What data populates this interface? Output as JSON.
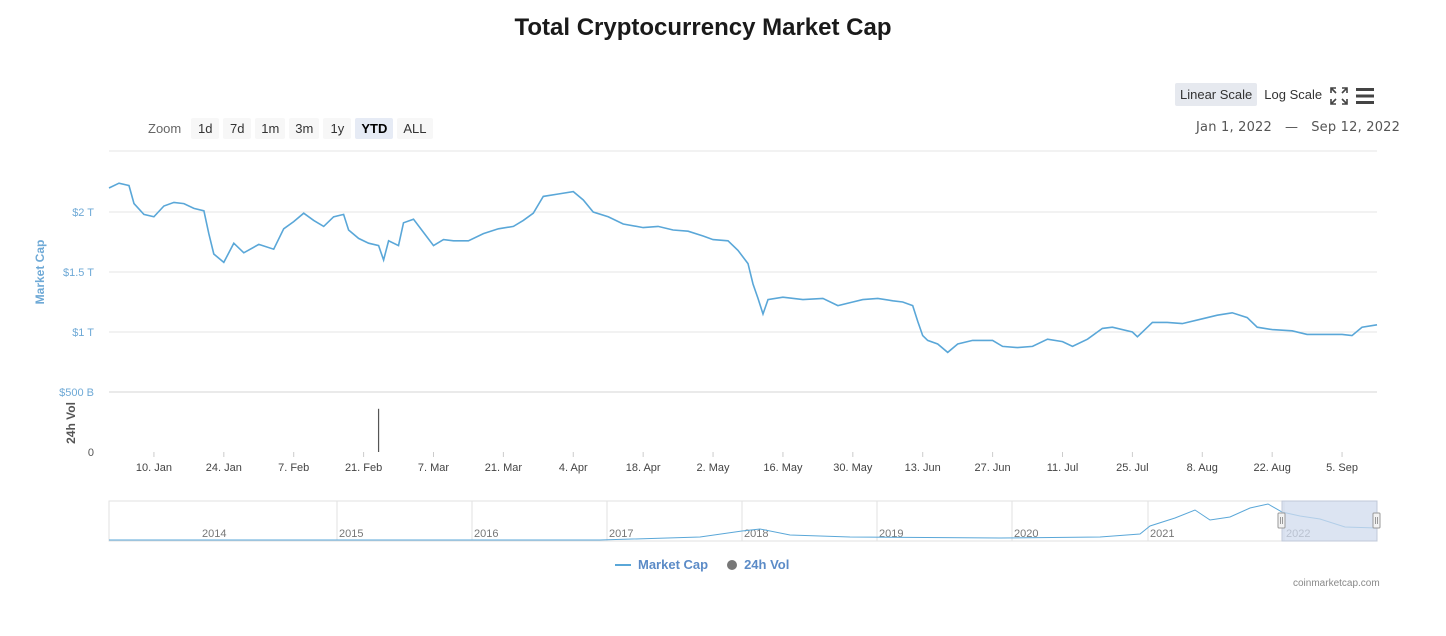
{
  "title": "Total Cryptocurrency Market Cap",
  "scale_buttons": {
    "linear": "Linear Scale",
    "log": "Log Scale"
  },
  "zoom": {
    "label": "Zoom",
    "buttons": [
      "1d",
      "7d",
      "1m",
      "3m",
      "1y",
      "YTD",
      "ALL"
    ],
    "selected": "YTD"
  },
  "date_range": {
    "from": "Jan 1, 2022",
    "separator": "—",
    "to": "Sep 12, 2022"
  },
  "legend": {
    "market_cap": "Market Cap",
    "vol": "24h Vol"
  },
  "credits": "coinmarketcap.com",
  "colors": {
    "line": "#5aa7d8",
    "vol_bar": "#555555",
    "nav_fill": "#d0dbee",
    "grid": "#e6e6e6",
    "axis_text": "#6ea9d6"
  },
  "icons": {
    "fullscreen": "expand-icon",
    "menu": "hamburger-menu-icon"
  },
  "chart_data": {
    "type": "line",
    "ylabel": "Market Cap",
    "vol_label": "24h Vol",
    "y_unit": "USD",
    "ylim": [
      0,
      2500000000000
    ],
    "y_ticks": [
      {
        "value": 0,
        "label": "0"
      },
      {
        "value": 500000000000,
        "label": "$500 B"
      },
      {
        "value": 1000000000000,
        "label": "$1 T"
      },
      {
        "value": 1500000000000,
        "label": "$1.5 T"
      },
      {
        "value": 2000000000000,
        "label": "$2 T"
      }
    ],
    "x_ticks": [
      "10. Jan",
      "24. Jan",
      "7. Feb",
      "21. Feb",
      "7. Mar",
      "21. Mar",
      "4. Apr",
      "18. Apr",
      "2. May",
      "16. May",
      "30. May",
      "13. Jun",
      "27. Jun",
      "11. Jul",
      "25. Jul",
      "8. Aug",
      "22. Aug",
      "5. Sep"
    ],
    "x_tick_dates": [
      "2022-01-10",
      "2022-01-24",
      "2022-02-07",
      "2022-02-21",
      "2022-03-07",
      "2022-03-21",
      "2022-04-04",
      "2022-04-18",
      "2022-05-02",
      "2022-05-16",
      "2022-05-30",
      "2022-06-13",
      "2022-06-27",
      "2022-07-11",
      "2022-07-25",
      "2022-08-08",
      "2022-08-22",
      "2022-09-05"
    ],
    "xlim": [
      "2022-01-01",
      "2022-09-12"
    ],
    "grid": true,
    "series": [
      {
        "name": "Market Cap",
        "points": [
          [
            "2022-01-01",
            2200000000000.0
          ],
          [
            "2022-01-03",
            2240000000000.0
          ],
          [
            "2022-01-05",
            2220000000000.0
          ],
          [
            "2022-01-06",
            2070000000000.0
          ],
          [
            "2022-01-08",
            1980000000000.0
          ],
          [
            "2022-01-10",
            1960000000000.0
          ],
          [
            "2022-01-12",
            2050000000000.0
          ],
          [
            "2022-01-14",
            2080000000000.0
          ],
          [
            "2022-01-16",
            2070000000000.0
          ],
          [
            "2022-01-18",
            2030000000000.0
          ],
          [
            "2022-01-20",
            2010000000000.0
          ],
          [
            "2022-01-21",
            1820000000000.0
          ],
          [
            "2022-01-22",
            1650000000000.0
          ],
          [
            "2022-01-24",
            1580000000000.0
          ],
          [
            "2022-01-26",
            1740000000000.0
          ],
          [
            "2022-01-28",
            1660000000000.0
          ],
          [
            "2022-01-31",
            1730000000000.0
          ],
          [
            "2022-02-03",
            1690000000000.0
          ],
          [
            "2022-02-05",
            1860000000000.0
          ],
          [
            "2022-02-07",
            1920000000000.0
          ],
          [
            "2022-02-09",
            1990000000000.0
          ],
          [
            "2022-02-11",
            1930000000000.0
          ],
          [
            "2022-02-13",
            1880000000000.0
          ],
          [
            "2022-02-15",
            1960000000000.0
          ],
          [
            "2022-02-17",
            1980000000000.0
          ],
          [
            "2022-02-18",
            1850000000000.0
          ],
          [
            "2022-02-20",
            1780000000000.0
          ],
          [
            "2022-02-22",
            1740000000000.0
          ],
          [
            "2022-02-24",
            1720000000000.0
          ],
          [
            "2022-02-25",
            1600000000000.0
          ],
          [
            "2022-02-26",
            1760000000000.0
          ],
          [
            "2022-02-28",
            1720000000000.0
          ],
          [
            "2022-03-01",
            1910000000000.0
          ],
          [
            "2022-03-03",
            1940000000000.0
          ],
          [
            "2022-03-05",
            1830000000000.0
          ],
          [
            "2022-03-07",
            1720000000000.0
          ],
          [
            "2022-03-09",
            1770000000000.0
          ],
          [
            "2022-03-11",
            1760000000000.0
          ],
          [
            "2022-03-14",
            1760000000000.0
          ],
          [
            "2022-03-17",
            1820000000000.0
          ],
          [
            "2022-03-20",
            1860000000000.0
          ],
          [
            "2022-03-23",
            1880000000000.0
          ],
          [
            "2022-03-25",
            1930000000000.0
          ],
          [
            "2022-03-27",
            1990000000000.0
          ],
          [
            "2022-03-29",
            2130000000000.0
          ],
          [
            "2022-04-01",
            2150000000000.0
          ],
          [
            "2022-04-04",
            2170000000000.0
          ],
          [
            "2022-04-06",
            2100000000000.0
          ],
          [
            "2022-04-08",
            2000000000000.0
          ],
          [
            "2022-04-11",
            1960000000000.0
          ],
          [
            "2022-04-14",
            1900000000000.0
          ],
          [
            "2022-04-18",
            1870000000000.0
          ],
          [
            "2022-04-21",
            1880000000000.0
          ],
          [
            "2022-04-24",
            1850000000000.0
          ],
          [
            "2022-04-27",
            1840000000000.0
          ],
          [
            "2022-04-30",
            1800000000000.0
          ],
          [
            "2022-05-02",
            1770000000000.0
          ],
          [
            "2022-05-05",
            1760000000000.0
          ],
          [
            "2022-05-07",
            1680000000000.0
          ],
          [
            "2022-05-09",
            1570000000000.0
          ],
          [
            "2022-05-10",
            1400000000000.0
          ],
          [
            "2022-05-11",
            1280000000000.0
          ],
          [
            "2022-05-12",
            1150000000000.0
          ],
          [
            "2022-05-13",
            1270000000000.0
          ],
          [
            "2022-05-16",
            1290000000000.0
          ],
          [
            "2022-05-20",
            1270000000000.0
          ],
          [
            "2022-05-24",
            1280000000000.0
          ],
          [
            "2022-05-27",
            1220000000000.0
          ],
          [
            "2022-05-30",
            1250000000000.0
          ],
          [
            "2022-06-01",
            1270000000000.0
          ],
          [
            "2022-06-04",
            1280000000000.0
          ],
          [
            "2022-06-07",
            1260000000000.0
          ],
          [
            "2022-06-09",
            1250000000000.0
          ],
          [
            "2022-06-11",
            1220000000000.0
          ],
          [
            "2022-06-12",
            1090000000000.0
          ],
          [
            "2022-06-13",
            970000000000.0
          ],
          [
            "2022-06-14",
            930000000000.0
          ],
          [
            "2022-06-16",
            900000000000.0
          ],
          [
            "2022-06-18",
            830000000000.0
          ],
          [
            "2022-06-20",
            900000000000.0
          ],
          [
            "2022-06-23",
            930000000000.0
          ],
          [
            "2022-06-27",
            930000000000.0
          ],
          [
            "2022-06-29",
            880000000000.0
          ],
          [
            "2022-07-02",
            870000000000.0
          ],
          [
            "2022-07-05",
            880000000000.0
          ],
          [
            "2022-07-08",
            940000000000.0
          ],
          [
            "2022-07-11",
            920000000000.0
          ],
          [
            "2022-07-13",
            880000000000.0
          ],
          [
            "2022-07-16",
            940000000000.0
          ],
          [
            "2022-07-19",
            1030000000000.0
          ],
          [
            "2022-07-21",
            1040000000000.0
          ],
          [
            "2022-07-25",
            1000000000000.0
          ],
          [
            "2022-07-26",
            960000000000.0
          ],
          [
            "2022-07-29",
            1080000000000.0
          ],
          [
            "2022-08-01",
            1080000000000.0
          ],
          [
            "2022-08-04",
            1070000000000.0
          ],
          [
            "2022-08-08",
            1110000000000.0
          ],
          [
            "2022-08-11",
            1140000000000.0
          ],
          [
            "2022-08-14",
            1160000000000.0
          ],
          [
            "2022-08-17",
            1120000000000.0
          ],
          [
            "2022-08-19",
            1040000000000.0
          ],
          [
            "2022-08-22",
            1020000000000.0
          ],
          [
            "2022-08-26",
            1010000000000.0
          ],
          [
            "2022-08-29",
            980000000000.0
          ],
          [
            "2022-09-01",
            980000000000.0
          ],
          [
            "2022-09-05",
            980000000000.0
          ],
          [
            "2022-09-07",
            970000000000.0
          ],
          [
            "2022-09-09",
            1040000000000.0
          ],
          [
            "2022-09-12",
            1060000000000.0
          ]
        ]
      },
      {
        "name": "24h Vol",
        "type": "column",
        "points": [
          [
            "2022-02-24",
            360000000000
          ]
        ]
      }
    ]
  },
  "navigator": {
    "year_labels": [
      "2014",
      "2015",
      "2016",
      "2017",
      "2018",
      "2019",
      "2020",
      "2021",
      "2022"
    ],
    "selected_range": [
      "2022-01-01",
      "2022-09-12"
    ]
  }
}
